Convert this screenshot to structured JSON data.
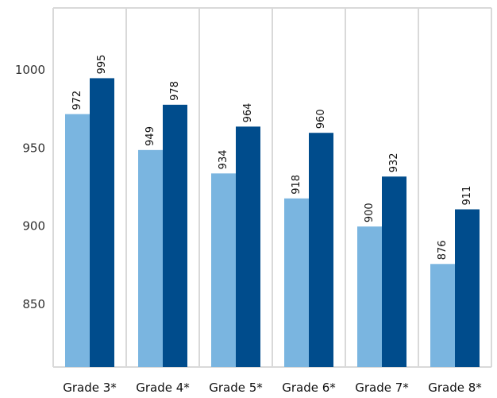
{
  "chart_data": {
    "type": "bar",
    "title": "",
    "xlabel": "",
    "ylabel": "",
    "categories": [
      "Grade 3*",
      "Grade 4*",
      "Grade 5*",
      "Grade 6*",
      "Grade 7*",
      "Grade 8*"
    ],
    "series": [
      {
        "values": [
          972,
          949,
          934,
          918,
          900,
          876
        ],
        "color": "#7ab5e0"
      },
      {
        "values": [
          995,
          978,
          964,
          960,
          932,
          911
        ],
        "color": "#004c8c"
      }
    ],
    "ylim": [
      810,
      1040
    ],
    "yticks": [
      850,
      900,
      950,
      1000
    ],
    "grid": false,
    "panel_separators": true,
    "data_labels": true,
    "data_label_rotation": -90
  }
}
